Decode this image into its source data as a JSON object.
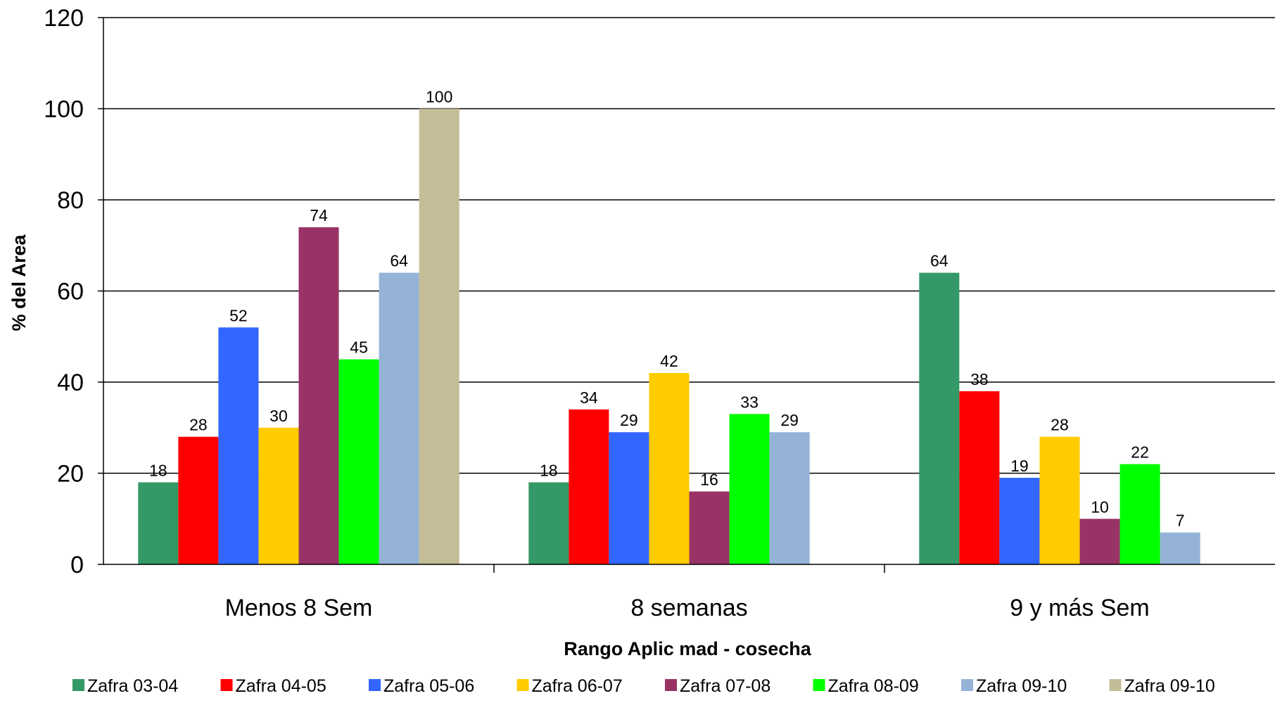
{
  "chart_data": {
    "type": "bar",
    "title": "",
    "xlabel": "Rango Aplic mad -  cosecha",
    "ylabel": "% del Area",
    "ylim": [
      0,
      120
    ],
    "yticks": [
      "0",
      "20",
      "40",
      "60",
      "80",
      "100",
      "120"
    ],
    "grid": "horizontal",
    "legend_position": "bottom",
    "categories": [
      "Menos 8 Sem",
      "8 semanas",
      "9 y más Sem"
    ],
    "series": [
      {
        "name": "Zafra 03-04",
        "color": "#339966",
        "values": [
          18,
          18,
          64
        ],
        "labels": [
          "18",
          "18",
          "64"
        ]
      },
      {
        "name": "Zafra 04-05",
        "color": "#ff0000",
        "values": [
          28,
          34,
          38
        ],
        "labels": [
          "28",
          "34",
          "38"
        ]
      },
      {
        "name": "Zafra 05-06",
        "color": "#3366ff",
        "values": [
          52,
          29,
          19
        ],
        "labels": [
          "52",
          "29",
          "19"
        ]
      },
      {
        "name": "Zafra 06-07",
        "color": "#ffcc00",
        "values": [
          30,
          42,
          28
        ],
        "labels": [
          "30",
          "42",
          "28"
        ]
      },
      {
        "name": "Zafra 07-08",
        "color": "#993366",
        "values": [
          74,
          16,
          10
        ],
        "labels": [
          "74",
          "16",
          "10"
        ]
      },
      {
        "name": "Zafra 08-09",
        "color": "#00ff00",
        "values": [
          45,
          33,
          22
        ],
        "labels": [
          "45",
          "33",
          "22"
        ]
      },
      {
        "name": "Zafra 09-10",
        "color": "#95b3d7",
        "values": [
          64,
          29,
          7
        ],
        "labels": [
          "64",
          "29",
          "7"
        ]
      },
      {
        "name": "Zafra 09-10",
        "color": "#c4bd97",
        "values": [
          100,
          0,
          0
        ],
        "labels": [
          "100",
          "",
          ""
        ]
      }
    ]
  }
}
